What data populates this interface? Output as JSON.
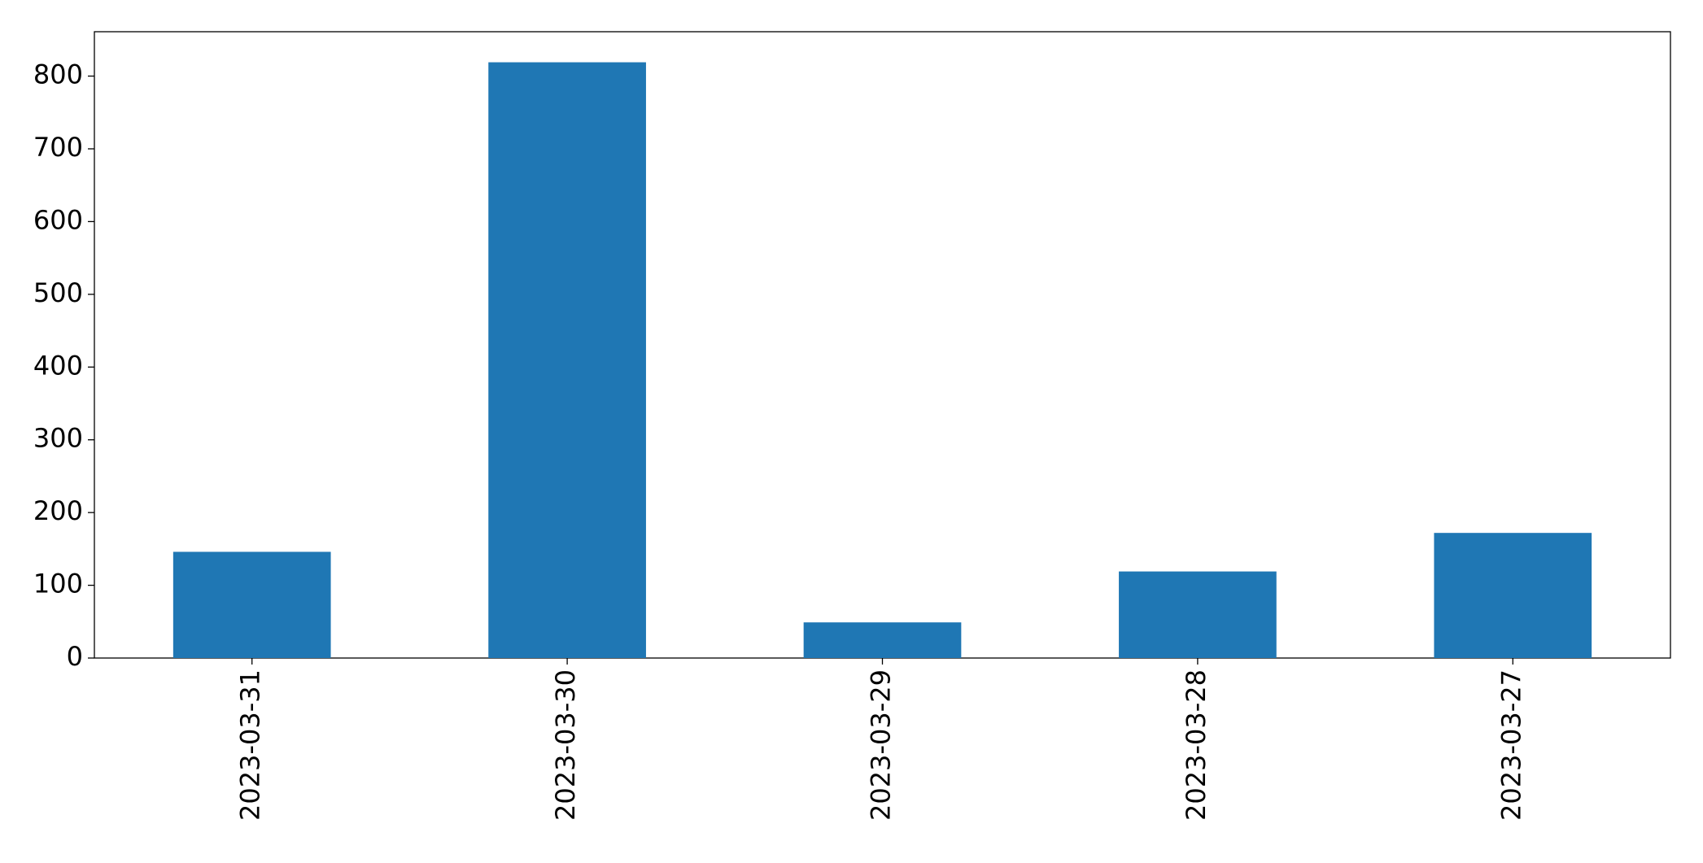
{
  "chart_data": {
    "type": "bar",
    "categories": [
      "2023-03-31",
      "2023-03-30",
      "2023-03-29",
      "2023-03-28",
      "2023-03-27"
    ],
    "values": [
      146,
      819,
      49,
      119,
      172
    ],
    "color": "#1f77b4",
    "ylim": [
      0,
      861
    ],
    "yticks": [
      0,
      100,
      200,
      300,
      400,
      500,
      600,
      700,
      800
    ],
    "grid": false
  }
}
